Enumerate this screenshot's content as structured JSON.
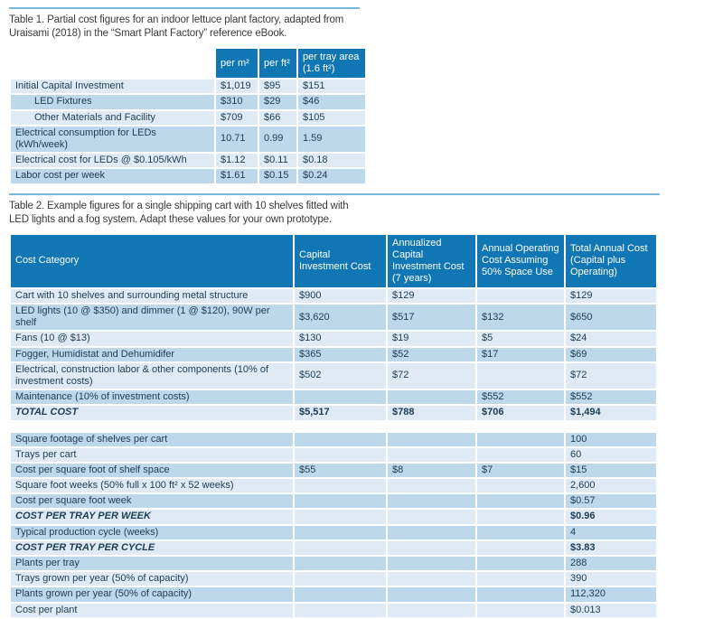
{
  "colors": {
    "header-blue": "#1076b4",
    "row-light": "#dfeaf5",
    "row-medium": "#bdd7eb",
    "rule-blue": "#77b5d9",
    "text-dark": "#1c3c52",
    "caption-text": "#3a3a3a"
  },
  "table1": {
    "caption_lines": [
      "Table 1. Partial cost figures for an indoor lettuce plant factory, adapted from",
      "Uraisami (2018) in the “Smart Plant Factory” reference eBook."
    ],
    "col_headers": [
      "per m²",
      "per ft²",
      "per tray area (1.6 ft²)"
    ],
    "rows": [
      {
        "label": "Initial Capital Investment",
        "values": [
          "$1,019",
          "$95",
          "$151"
        ]
      },
      {
        "label": "LED Fixtures",
        "indent": true,
        "values": [
          "$310",
          "$29",
          "$46"
        ]
      },
      {
        "label": "Other Materials and Facility",
        "indent": true,
        "values": [
          "$709",
          "$66",
          "$105"
        ]
      },
      {
        "label": "Electrical consumption for LEDs (kWh/week)",
        "values": [
          "10.71",
          "0.99",
          "1.59"
        ]
      },
      {
        "label": "Electrical cost for LEDs @ $0.105/kWh",
        "values": [
          "$1.12",
          "$0.11",
          "$0.18"
        ]
      },
      {
        "label": "Labor cost per week",
        "values": [
          "$1.61",
          "$0.15",
          "$0.24"
        ]
      }
    ]
  },
  "table2": {
    "caption_lines": [
      "Table 2. Example figures for a single shipping cart with 10 shelves fitted with",
      "LED lights and a fog system. Adapt these values for your own prototype."
    ],
    "col_headers": [
      "Cost Category",
      "Capital Investment Cost",
      "Annualized Capital Investment Cost (7 years)",
      "Annual Operating Cost Assuming 50% Space Use",
      "Total Annual Cost (Capital plus Operating)"
    ],
    "main_rows": [
      {
        "label": "Cart with 10 shelves and surrounding metal structure",
        "values": [
          "$900",
          "$129",
          "",
          "$129"
        ]
      },
      {
        "label": "LED lights (10 @ $350) and dimmer (1 @ $120), 90W per shelf",
        "values": [
          "$3,620",
          "$517",
          "$132",
          "$650"
        ]
      },
      {
        "label": "Fans (10 @ $13)",
        "values": [
          "$130",
          "$19",
          "$5",
          "$24"
        ]
      },
      {
        "label": "Fogger, Humidistat and Dehumidifer",
        "values": [
          "$365",
          "$52",
          "$17",
          "$69"
        ]
      },
      {
        "label": "Electrical, construction labor & other components (10% of investment costs)",
        "values": [
          "$502",
          "$72",
          "",
          "$72"
        ]
      },
      {
        "label": "Maintenance (10% of investment costs)",
        "values": [
          "",
          "",
          "$552",
          "$552"
        ]
      },
      {
        "label": "TOTAL COST",
        "emphasis": true,
        "values": [
          "$5,517",
          "$788",
          "$706",
          "$1,494"
        ]
      }
    ],
    "sub_rows": [
      {
        "label": "Square footage of shelves per cart",
        "values": [
          "",
          "",
          "",
          "100"
        ]
      },
      {
        "label": "Trays per cart",
        "values": [
          "",
          "",
          "",
          "60"
        ]
      },
      {
        "label": "Cost per square foot of shelf space",
        "values": [
          "$55",
          "$8",
          "$7",
          "$15"
        ]
      },
      {
        "label": "Square foot weeks (50% full x 100 ft² x 52 weeks)",
        "values": [
          "",
          "",
          "",
          "2,600"
        ]
      },
      {
        "label": "Cost per square foot week",
        "values": [
          "",
          "",
          "",
          "$0.57"
        ]
      },
      {
        "label": "COST PER TRAY PER WEEK",
        "emphasis": true,
        "values": [
          "",
          "",
          "",
          "$0.96"
        ]
      },
      {
        "label": "Typical production cycle (weeks)",
        "values": [
          "",
          "",
          "",
          "4"
        ]
      },
      {
        "label": "COST PER TRAY PER CYCLE",
        "emphasis": true,
        "values": [
          "",
          "",
          "",
          "$3.83"
        ]
      },
      {
        "label": "Plants per tray",
        "values": [
          "",
          "",
          "",
          "288"
        ]
      },
      {
        "label": "Trays grown per year (50% of capacity)",
        "values": [
          "",
          "",
          "",
          "390"
        ]
      },
      {
        "label": "Plants grown per year (50% of capacity)",
        "values": [
          "",
          "",
          "",
          "112,320"
        ]
      },
      {
        "label": "Cost per plant",
        "values": [
          "",
          "",
          "",
          "$0.013"
        ]
      }
    ]
  }
}
